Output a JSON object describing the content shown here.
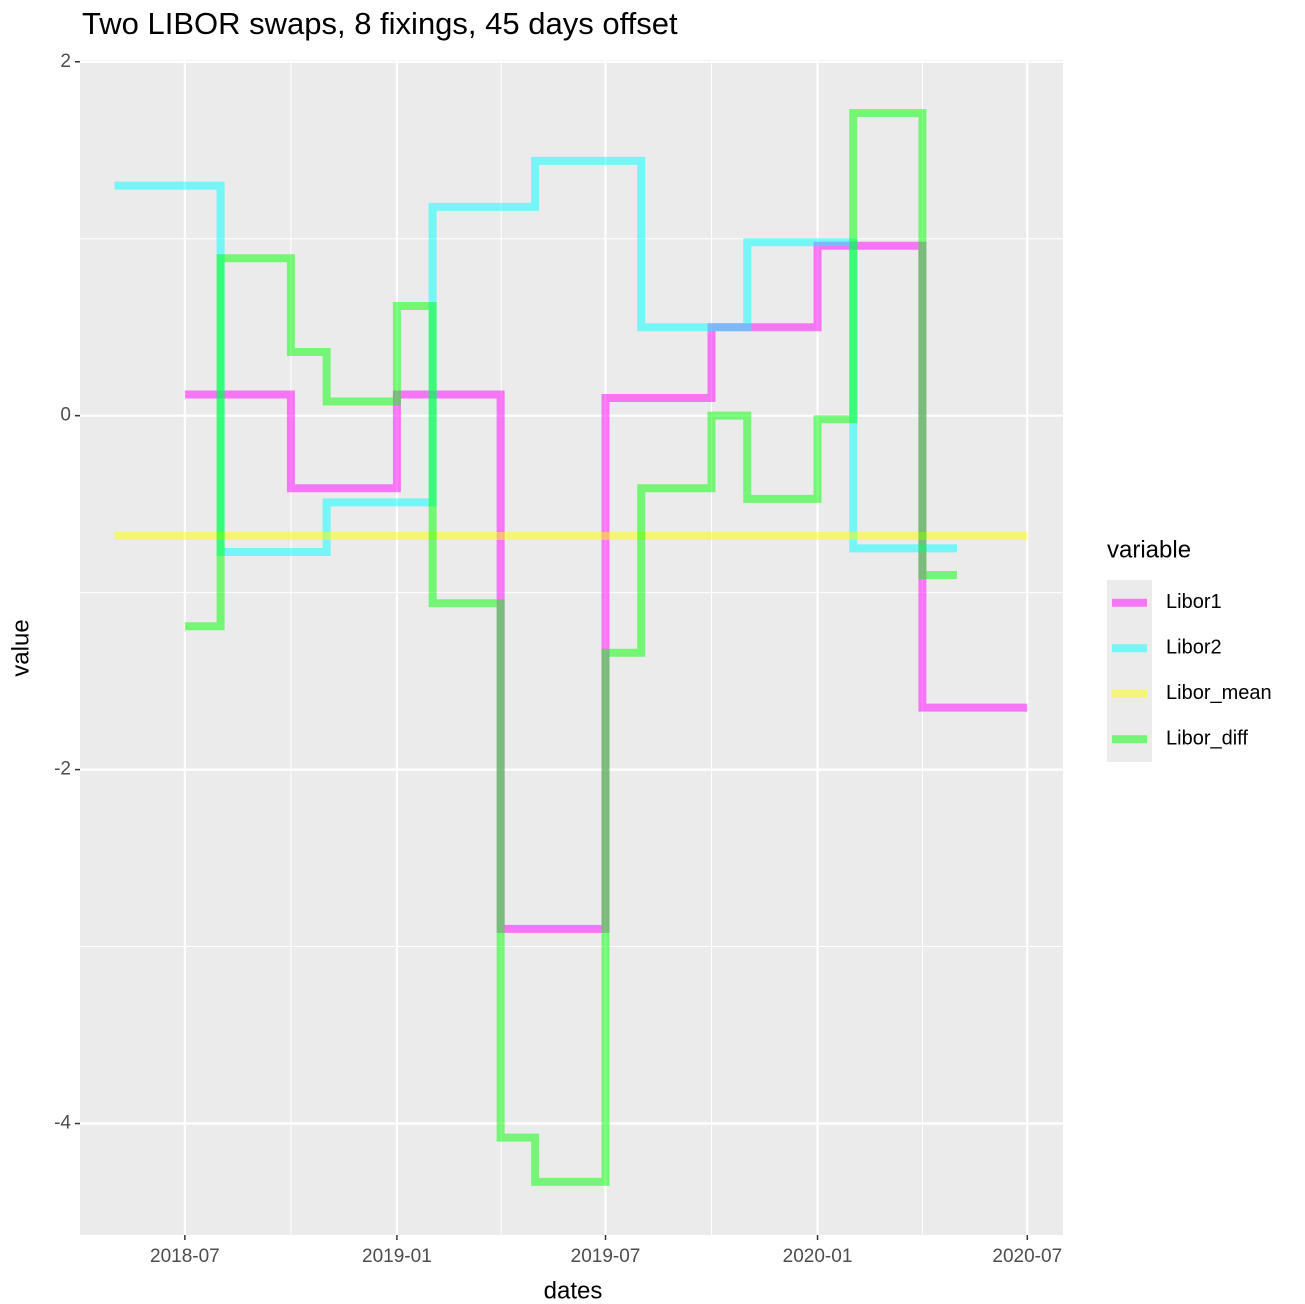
{
  "chart_data": {
    "type": "line",
    "step": true,
    "title": "Two LIBOR swaps, 8 fixings, 45 days offset",
    "x_label": "dates",
    "y_label": "value",
    "legend_title": "variable",
    "legend_position": "right",
    "grid": true,
    "opacity": 0.5,
    "xlim": [
      "2018-04",
      "2020-08"
    ],
    "xticks": [
      "2018-07",
      "2019-01",
      "2019-07",
      "2020-01",
      "2020-07"
    ],
    "ylim": [
      -4.63,
      2.01
    ],
    "yticks": [
      2,
      0,
      -2,
      -4
    ],
    "series": [
      {
        "name": "Libor1",
        "color": "#ff00ff",
        "x": [
          "2018-07",
          "2018-10",
          "2019-01",
          "2019-04",
          "2019-07",
          "2019-10",
          "2020-01",
          "2020-04",
          "2020-07"
        ],
        "values": [
          0.12,
          -0.41,
          0.12,
          -2.9,
          0.1,
          0.5,
          0.96,
          -1.65,
          -1.65
        ]
      },
      {
        "name": "Libor2",
        "color": "#00ffff",
        "x": [
          "2018-05",
          "2018-08",
          "2018-11",
          "2019-02",
          "2019-05",
          "2019-08",
          "2019-11",
          "2020-02",
          "2020-05"
        ],
        "values": [
          1.3,
          -0.77,
          -0.49,
          1.18,
          1.44,
          0.5,
          0.98,
          -0.75,
          -0.75
        ]
      },
      {
        "name": "Libor_mean",
        "color": "#ffff00",
        "x": [
          "2018-05",
          "2020-07"
        ],
        "values": [
          -0.68,
          -0.68
        ]
      },
      {
        "name": "Libor_diff",
        "color": "#00ff00",
        "x": [
          "2018-07",
          "2018-08",
          "2018-10",
          "2018-11",
          "2019-01",
          "2019-02",
          "2019-04",
          "2019-05",
          "2019-07",
          "2019-08",
          "2019-10",
          "2019-11",
          "2020-01",
          "2020-02",
          "2020-04",
          "2020-05"
        ],
        "values": [
          -1.19,
          0.89,
          0.36,
          0.08,
          0.62,
          -1.06,
          -4.08,
          -4.33,
          -1.34,
          -0.41,
          0.0,
          -0.47,
          -0.02,
          1.71,
          -0.9,
          -0.9
        ]
      }
    ]
  }
}
